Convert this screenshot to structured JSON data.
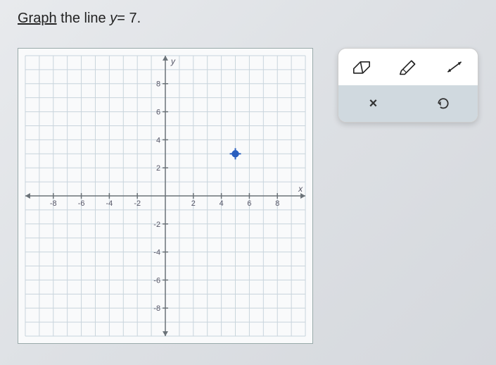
{
  "prompt": {
    "verb": "Graph",
    "rest": " the line ",
    "equation_lhs": "y",
    "equation_rhs": "= 7.",
    "text_color": "#222222"
  },
  "graph": {
    "type": "scatter",
    "xlim": [
      -10,
      10
    ],
    "ylim": [
      -10,
      10
    ],
    "tick_step": 2,
    "labeled_ticks": [
      -8,
      -6,
      -4,
      -2,
      2,
      4,
      6,
      8
    ],
    "x_axis_label": "x",
    "y_axis_label": "y",
    "grid_color": "#c8d4dc",
    "axis_color": "#6a7278",
    "background_color": "#f9fafb",
    "border_color": "#99aaaa",
    "plotted_points": [
      {
        "x": 5,
        "y": 3
      }
    ],
    "point_color": "#2a5fbf",
    "point_radius": 6
  },
  "toolbox": {
    "background": "#ffffff",
    "secondary_row_bg": "#d0d9df",
    "border_color": "#cccccc",
    "tools": {
      "eraser": "eraser",
      "pencil": "pencil",
      "line": "line",
      "close": "×",
      "undo": "↺"
    }
  }
}
